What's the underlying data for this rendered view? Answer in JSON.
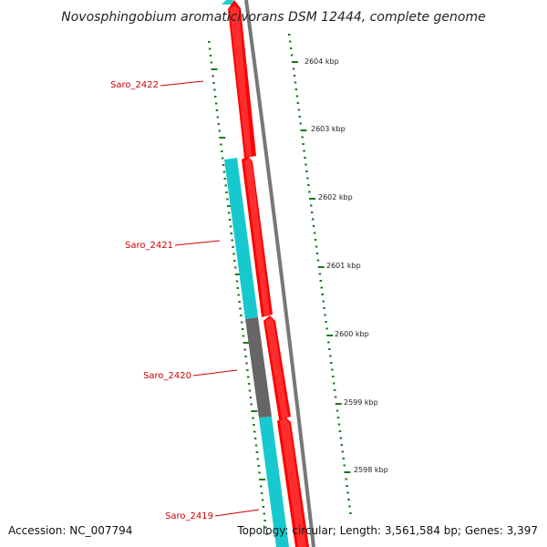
{
  "title": "Novosphingobium aromaticivorans DSM 12444, complete genome",
  "footer": {
    "accession": "Accession: NC_007794",
    "summary": "Topology: circular; Length: 3,561,584 bp; Genes: 3,397"
  },
  "colors": {
    "forward_gene": "#ff0000",
    "reverse_gene": "#17c9cf",
    "reverse_other": "#666666",
    "backbone": "#777777",
    "tick": "#1a7a1a",
    "gene_label": "#cc0000"
  },
  "map": {
    "kbp_labels": [
      "2604 kbp",
      "2603 kbp",
      "2602 kbp",
      "2601 kbp",
      "2600 kbp",
      "2599 kbp",
      "2598 kbp"
    ],
    "genes": [
      {
        "id": "Saro_2422",
        "strand": "forward",
        "label": "Saro_2422",
        "color": "#ff0000"
      },
      {
        "id": "Saro_2421",
        "strand": "forward",
        "label": "Saro_2421",
        "color": "#ff0000"
      },
      {
        "id": "Saro_2420",
        "strand": "forward",
        "label": "Saro_2420",
        "color": "#ff0000"
      },
      {
        "id": "Saro_2419",
        "strand": "forward",
        "label": "Saro_2419",
        "color": "#ff0000"
      },
      {
        "id": "rev_1",
        "strand": "reverse",
        "label": "",
        "color": "#17c9cf"
      },
      {
        "id": "rev_2",
        "strand": "reverse",
        "label": "",
        "color": "#666666"
      },
      {
        "id": "rev_3",
        "strand": "reverse",
        "label": "",
        "color": "#17c9cf"
      }
    ]
  }
}
